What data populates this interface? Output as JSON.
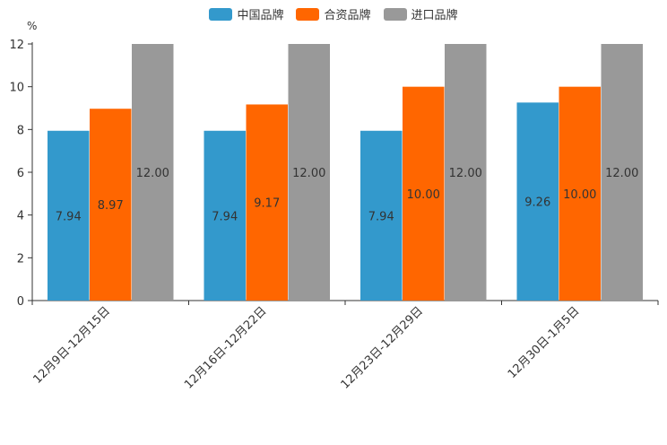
{
  "chart_data": {
    "type": "bar",
    "title": "",
    "xlabel": "",
    "ylabel": "",
    "y_unit": "%",
    "ylim": [
      0,
      12
    ],
    "yticks": [
      "0",
      "2",
      "4",
      "6",
      "8",
      "10",
      "12"
    ],
    "grid": false,
    "legend_position": "top-center",
    "categories": [
      "12月9日-12月15日",
      "12月16日-12月22日",
      "12月23日-12月29日",
      "12月30日-1月5日"
    ],
    "series": [
      {
        "name": "中国品牌",
        "color": "#3399cc",
        "values": [
          7.94,
          7.94,
          7.94,
          9.26
        ],
        "labels": [
          "7.94",
          "7.94",
          "7.94",
          "9.26"
        ]
      },
      {
        "name": "合资品牌",
        "color": "#ff6600",
        "values": [
          8.97,
          9.17,
          10.0,
          10.0
        ],
        "labels": [
          "8.97",
          "9.17",
          "10.00",
          "10.00"
        ]
      },
      {
        "name": "进口品牌",
        "color": "#999999",
        "values": [
          12.0,
          12.0,
          12.0,
          12.0
        ],
        "labels": [
          "12.00",
          "12.00",
          "12.00",
          "12.00"
        ]
      }
    ]
  }
}
